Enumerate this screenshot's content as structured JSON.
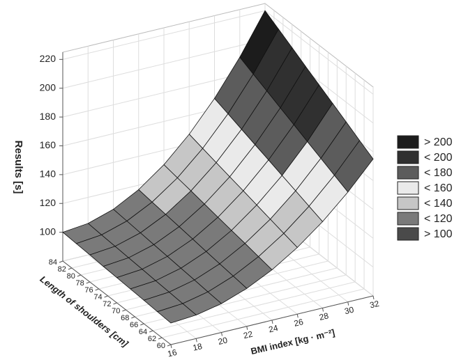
{
  "chart_data": {
    "type": "surface",
    "x_label": "BMI index [kg · m⁻²]",
    "y_label": "Length of shoulders [cm]",
    "z_label": "Results [s]",
    "x": [
      16,
      18,
      20,
      22,
      24,
      26,
      28,
      30,
      32
    ],
    "y": [
      60,
      63,
      66,
      69,
      72,
      75,
      78,
      81,
      84
    ],
    "z": [
      [
        95,
        96.3,
        100,
        106.3,
        115,
        126.3,
        140,
        156.3,
        175
      ],
      [
        95.6,
        97.0,
        100.9,
        107.6,
        116.9,
        128.8,
        143.4,
        160.7,
        180.6
      ],
      [
        96.3,
        97.7,
        101.9,
        108.9,
        118.8,
        131.4,
        146.9,
        165.2,
        186.3
      ],
      [
        96.9,
        98.4,
        102.8,
        110.2,
        120.6,
        134.0,
        150.3,
        169.6,
        191.9
      ],
      [
        97.5,
        99.1,
        103.8,
        111.6,
        122.5,
        136.6,
        153.8,
        174.1,
        197.5
      ],
      [
        98.1,
        99.8,
        104.7,
        112.9,
        124.4,
        139.1,
        157.2,
        178.5,
        203.1
      ],
      [
        98.8,
        100.5,
        105.6,
        114.2,
        126.3,
        141.7,
        160.6,
        183.0,
        208.8
      ],
      [
        99.4,
        101.2,
        106.6,
        115.5,
        128.1,
        144.3,
        164.1,
        187.4,
        214.4
      ],
      [
        100,
        101.9,
        107.5,
        116.9,
        130,
        146.9,
        167.5,
        191.9,
        220
      ]
    ],
    "xlim": [
      16,
      32
    ],
    "ylim": [
      60,
      84
    ],
    "zlim": [
      80,
      225
    ],
    "xticks": [
      16,
      18,
      20,
      22,
      24,
      26,
      28,
      30,
      32
    ],
    "yticks": [
      60,
      62,
      64,
      66,
      68,
      70,
      72,
      74,
      76,
      78,
      80,
      82,
      84
    ],
    "zticks": [
      100,
      120,
      140,
      160,
      180,
      200,
      220
    ],
    "grid": true,
    "legend_position": "right",
    "legend": [
      {
        "value": 200,
        "label": "> 200",
        "color": "#1c1c1c"
      },
      {
        "value": 200,
        "label": "< 200",
        "color": "#303030"
      },
      {
        "value": 180,
        "label": "< 180",
        "color": "#5c5c5c"
      },
      {
        "value": 160,
        "label": "< 160",
        "color": "#eaeaea"
      },
      {
        "value": 140,
        "label": "< 140",
        "color": "#c6c6c6"
      },
      {
        "value": 120,
        "label": "< 120",
        "color": "#7a7a7a"
      },
      {
        "value": 100,
        "label": "> 100",
        "color": "#4a4a4a"
      }
    ]
  }
}
